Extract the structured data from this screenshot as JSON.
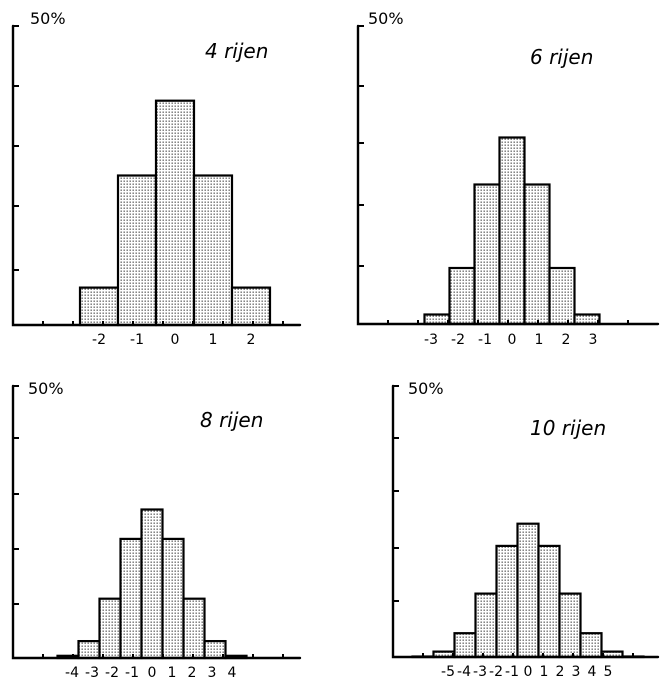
{
  "chart_data": [
    {
      "type": "bar",
      "title": "4 rijen",
      "ytick_label": "50%",
      "ylim": [
        0,
        50
      ],
      "categories": [
        "-2",
        "-1",
        "0",
        "1",
        "2"
      ],
      "values": [
        6.25,
        25.0,
        37.5,
        25.0,
        6.25
      ],
      "xtick_labels": [
        "-2",
        "-1",
        "0",
        "1",
        "2"
      ]
    },
    {
      "type": "bar",
      "title": "6 rijen",
      "ytick_label": "50%",
      "ylim": [
        0,
        50
      ],
      "categories": [
        "-3",
        "-2",
        "-1",
        "0",
        "1",
        "2",
        "3"
      ],
      "values": [
        1.6,
        9.4,
        23.4,
        31.3,
        23.4,
        9.4,
        1.6
      ],
      "xtick_labels": [
        "-3",
        "-2",
        "-1",
        "0",
        "1",
        "2",
        "3"
      ]
    },
    {
      "type": "bar",
      "title": "8 rijen",
      "ytick_label": "50%",
      "ylim": [
        0,
        50
      ],
      "categories": [
        "-4",
        "-3",
        "-2",
        "-1",
        "0",
        "1",
        "2",
        "3",
        "4"
      ],
      "values": [
        0.4,
        3.1,
        10.9,
        21.9,
        27.3,
        21.9,
        10.9,
        3.1,
        0.4
      ],
      "xtick_labels": [
        "-4",
        "-3",
        "-2",
        "-1",
        "0",
        "1",
        "2",
        "3",
        "4"
      ]
    },
    {
      "type": "bar",
      "title": "10 rijen",
      "ytick_label": "50%",
      "ylim": [
        0,
        50
      ],
      "categories": [
        "-5",
        "-4",
        "-3",
        "-2",
        "-1",
        "0",
        "1",
        "2",
        "3",
        "4",
        "5"
      ],
      "values": [
        0.1,
        1.0,
        4.4,
        11.7,
        20.5,
        24.6,
        20.5,
        11.7,
        4.4,
        1.0,
        0.1
      ],
      "xtick_labels": [
        "-5",
        "-4",
        "-3",
        "-2",
        "-1",
        "0",
        "1",
        "2",
        "3",
        "4",
        "5"
      ]
    }
  ]
}
